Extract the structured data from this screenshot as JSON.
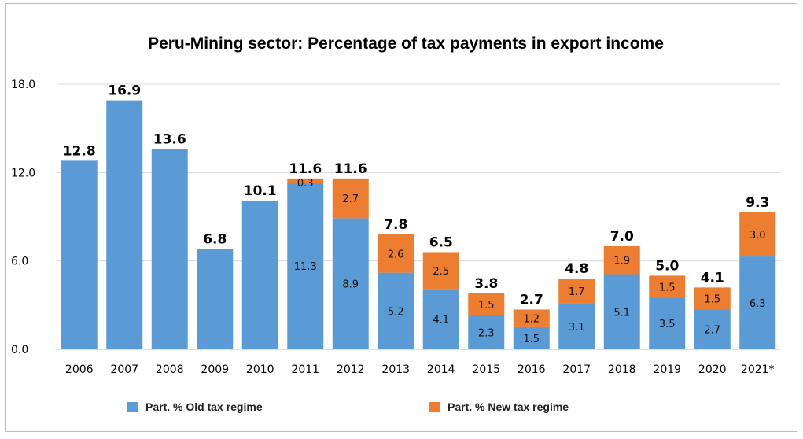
{
  "chart_data": {
    "type": "bar",
    "stacked": true,
    "title": "Peru-Mining sector: Percentage of tax payments in export income",
    "categories": [
      "2006",
      "2007",
      "2008",
      "2009",
      "2010",
      "2011",
      "2012",
      "2013",
      "2014",
      "2015",
      "2016",
      "2017",
      "2018",
      "2019",
      "2020",
      "2021*"
    ],
    "series": [
      {
        "name": "Part. % Old tax regime",
        "color": "#5b9bd5",
        "values": [
          12.8,
          16.9,
          13.6,
          6.8,
          10.1,
          11.3,
          8.9,
          5.2,
          4.1,
          2.3,
          1.5,
          3.1,
          5.1,
          3.5,
          2.7,
          6.3
        ],
        "labels": [
          "",
          "",
          "",
          "",
          "",
          "11.3",
          "8.9",
          "5.2",
          "4.1",
          "2.3",
          "1.5",
          "3.1",
          "5.1",
          "3.5",
          "2.7",
          "6.3"
        ]
      },
      {
        "name": "Part. % New tax regime",
        "color": "#ed7d31",
        "values": [
          0,
          0,
          0,
          0,
          0,
          0.3,
          2.7,
          2.6,
          2.5,
          1.5,
          1.2,
          1.7,
          1.9,
          1.5,
          1.5,
          3.0
        ],
        "labels": [
          "",
          "",
          "",
          "",
          "",
          "0.3",
          "2.7",
          "2.6",
          "2.5",
          "1.5",
          "1.2",
          "1.7",
          "1.9",
          "1.5",
          "1.5",
          "3.0"
        ]
      }
    ],
    "totals": [
      "12.8",
      "16.9",
      "13.6",
      "6.8",
      "10.1",
      "11.6",
      "11.6",
      "7.8",
      "6.5",
      "3.8",
      "2.7",
      "4.8",
      "7.0",
      "5.0",
      "4.1",
      "9.3"
    ],
    "yticks": [
      "0.0",
      "6.0",
      "12.0",
      "18.0"
    ],
    "ylim": [
      0,
      18
    ],
    "grid": true,
    "legend_position": "bottom"
  }
}
